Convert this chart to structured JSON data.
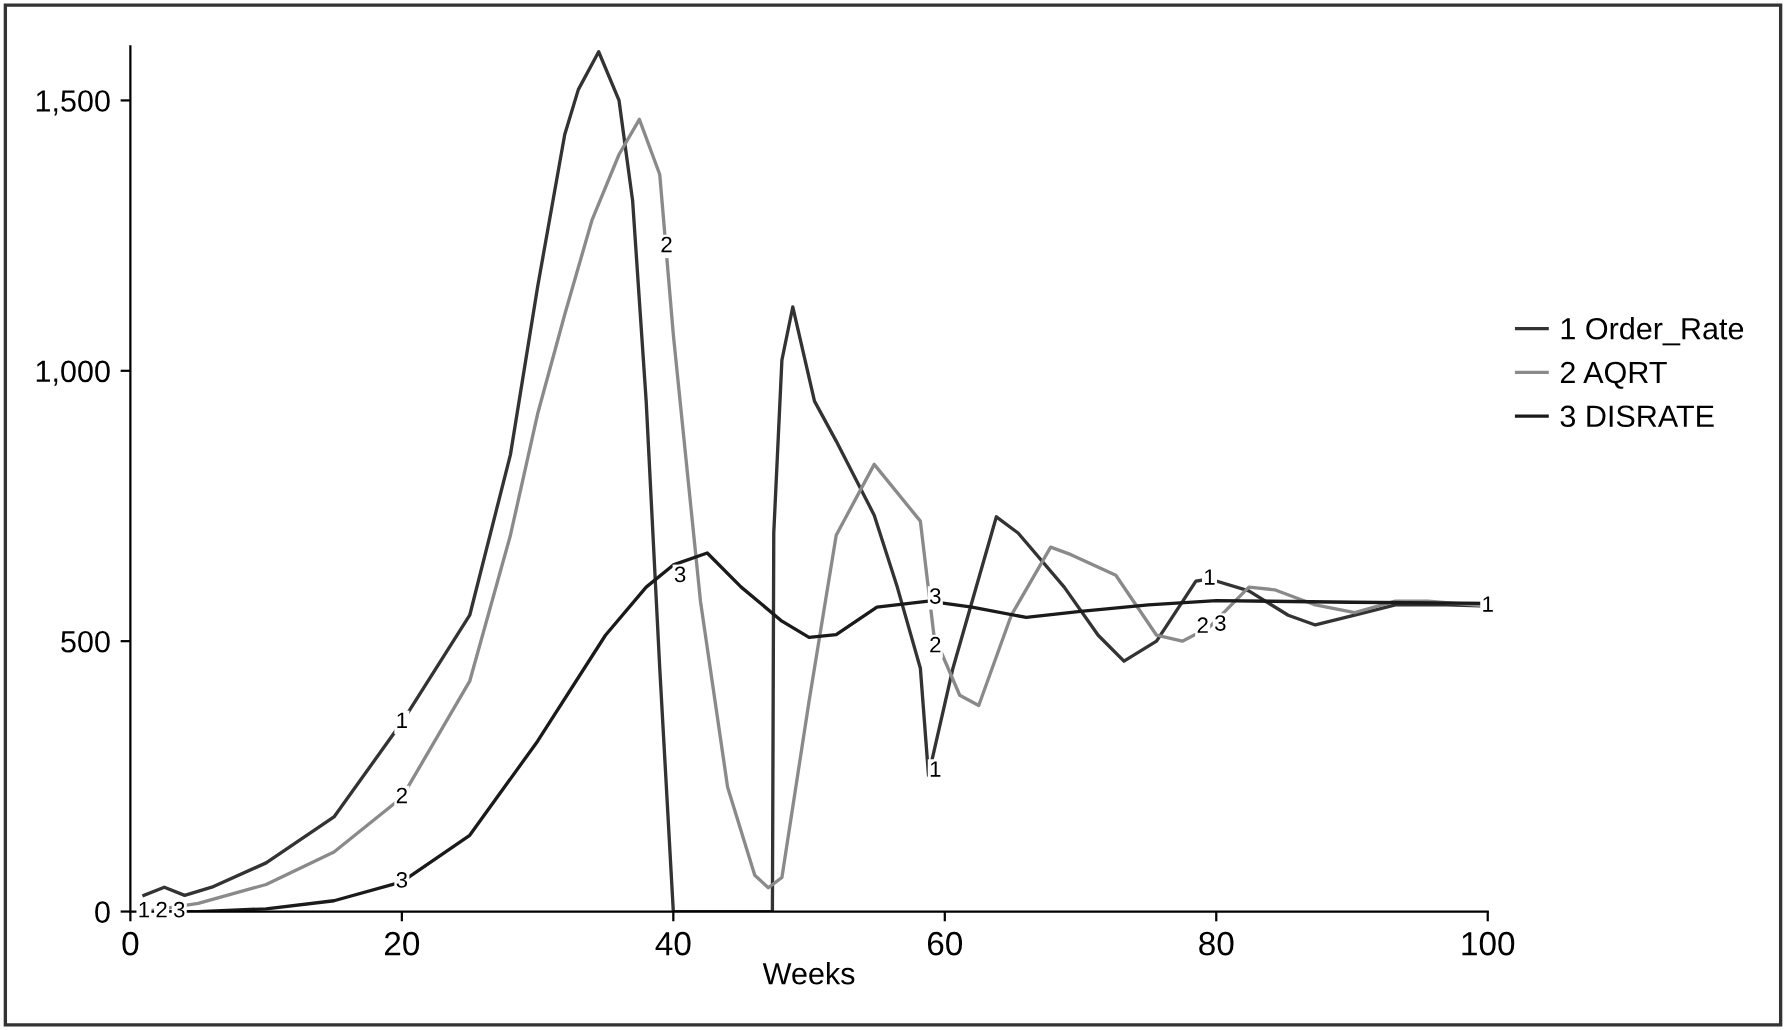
{
  "chart_data": {
    "type": "line",
    "xlabel": "Weeks",
    "xlim": [
      0,
      100
    ],
    "ylim": [
      0,
      1600
    ],
    "xticks": [
      0,
      20,
      40,
      60,
      80,
      100
    ],
    "yticks": [
      0,
      500,
      {
        "value": 1000,
        "label": "1,000"
      },
      {
        "value": 1500,
        "label": "1,500"
      }
    ],
    "grid": false,
    "legend": "right",
    "marker": "none",
    "line_style": "solid",
    "series": [
      {
        "name": "1 Order_Rate",
        "color": "#333333",
        "x": [
          1,
          2.5,
          4,
          6,
          10,
          15,
          20,
          25,
          28,
          30,
          32,
          33,
          34.5,
          36,
          37,
          38,
          39,
          40,
          47.3,
          47.4,
          48,
          48.8,
          50.4,
          52,
          54.8,
          56.5,
          58.2,
          58.8,
          60.6,
          63.8,
          65.4,
          68.8,
          71.3,
          73.2,
          75.6,
          78.5,
          79.5,
          82.4,
          85.3,
          87.3,
          90.2,
          93.2,
          97,
          100
        ],
        "values": [
          30,
          45,
          30,
          45,
          90,
          175,
          350,
          548,
          845,
          1155,
          1437,
          1520,
          1590,
          1500,
          1315,
          944,
          450,
          0,
          0,
          700,
          1020,
          1118,
          944,
          870,
          733,
          600,
          450,
          252,
          450,
          730,
          700,
          600,
          511,
          463,
          500,
          611,
          615,
          593,
          548,
          530,
          548,
          567,
          567,
          565
        ]
      },
      {
        "name": "2 AQRT",
        "color": "#8a8a8a",
        "x": [
          1,
          5,
          10,
          15,
          20,
          25,
          28,
          30,
          32,
          34,
          36,
          37.5,
          39,
          40,
          42,
          44,
          46,
          47,
          48,
          50,
          52,
          54.8,
          58.2,
          59.2,
          61.1,
          62.5,
          64.9,
          67.8,
          69.3,
          72.6,
          75.6,
          77.5,
          79.5,
          82.4,
          84.3,
          87.3,
          90.2,
          93.2,
          95.6,
          100
        ],
        "values": [
          0,
          15,
          50,
          110,
          211,
          426,
          696,
          920,
          1104,
          1278,
          1400,
          1465,
          1363,
          1067,
          574,
          230,
          67,
          44,
          63,
          389,
          696,
          827,
          722,
          511,
          400,
          381,
          548,
          674,
          660,
          622,
          511,
          500,
          526,
          600,
          595,
          567,
          553,
          574,
          574,
          565
        ]
      },
      {
        "name": "3 DISRATE",
        "color": "#1a1a1a",
        "x": [
          3,
          5,
          10,
          15,
          20,
          25,
          30,
          35,
          38,
          40,
          42.5,
          45,
          48,
          50,
          52,
          55,
          58.8,
          62,
          66,
          70,
          75,
          80,
          90,
          100
        ],
        "values": [
          0,
          0,
          5,
          20,
          55,
          141,
          315,
          511,
          600,
          641,
          663,
          600,
          537,
          507,
          512,
          563,
          574,
          563,
          544,
          555,
          567,
          575,
          572,
          570
        ]
      }
    ],
    "annotations": [
      {
        "text": "1",
        "x": 1,
        "y": 0
      },
      {
        "text": "2",
        "x": 2.3,
        "y": 0
      },
      {
        "text": "3",
        "x": 3.6,
        "y": 0
      },
      {
        "text": "1",
        "x": 20,
        "y": 350
      },
      {
        "text": "2",
        "x": 20,
        "y": 211
      },
      {
        "text": "3",
        "x": 20,
        "y": 55
      },
      {
        "text": "2",
        "x": 39.5,
        "y": 1230
      },
      {
        "text": "3",
        "x": 40.5,
        "y": 620
      },
      {
        "text": "1",
        "x": 59.3,
        "y": 260
      },
      {
        "text": "2",
        "x": 59.3,
        "y": 490
      },
      {
        "text": "3",
        "x": 59.3,
        "y": 580
      },
      {
        "text": "1",
        "x": 79.5,
        "y": 615
      },
      {
        "text": "2",
        "x": 79,
        "y": 526
      },
      {
        "text": "3",
        "x": 80.3,
        "y": 530
      },
      {
        "text": "1",
        "x": 100,
        "y": 565
      }
    ]
  }
}
